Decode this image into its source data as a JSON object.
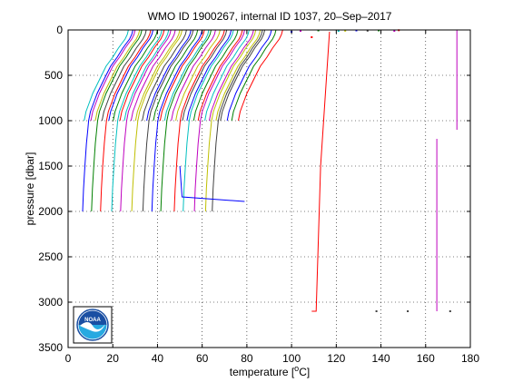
{
  "chart_data": {
    "type": "line",
    "title": "WMO ID 1900267, internal ID 1037, 20–Sep–2017",
    "xlabel_main": "temperature [",
    "xlabel_sup": "o",
    "xlabel_tail": "C]",
    "ylabel": "pressure [dbar]",
    "xlim": [
      0,
      180
    ],
    "ylim": [
      3500,
      0
    ],
    "y_reversed": true,
    "grid": true,
    "grid_style": "dotted",
    "legend": "none",
    "x_ticks": [
      "0",
      "20",
      "40",
      "60",
      "80",
      "100",
      "120",
      "140",
      "160",
      "180"
    ],
    "y_ticks": [
      "0",
      "500",
      "1000",
      "1500",
      "2000",
      "2500",
      "3000",
      "3500"
    ],
    "series_note": "Profiles are plotted with a cumulative horizontal offset; many overlapping colored lines.",
    "profile_colors": [
      "#0000ff",
      "#008000",
      "#ff0000",
      "#00bfbf",
      "#bf00bf",
      "#bfbf00",
      "#404040"
    ],
    "deep_profile_offsets": [
      5,
      9,
      13,
      18,
      22,
      27,
      32,
      36,
      40,
      46,
      50,
      55,
      60,
      63
    ],
    "shallow_profile_offsets": [
      3,
      6,
      8,
      11,
      14,
      16,
      19,
      21,
      24,
      26,
      29,
      31,
      34,
      37,
      39,
      42,
      44,
      47,
      49,
      52,
      54,
      57,
      59,
      62,
      64,
      67,
      69,
      72
    ],
    "outlier_segments": [
      {
        "color": "#0000ff",
        "points": [
          [
            50,
            1500
          ],
          [
            51,
            1840
          ],
          [
            79,
            1890
          ]
        ]
      },
      {
        "color": "#ff0000",
        "points": [
          [
            117,
            20
          ],
          [
            113,
            1500
          ],
          [
            111,
            3100
          ],
          [
            109,
            3100
          ]
        ]
      },
      {
        "color": "#bf00bf",
        "points": [
          [
            174,
            0
          ],
          [
            174,
            1100
          ]
        ]
      },
      {
        "color": "#bf00bf",
        "points": [
          [
            165,
            1200
          ],
          [
            165,
            3100
          ]
        ]
      }
    ],
    "surface_flecks": [
      {
        "x": 100,
        "y": 20,
        "color": "#0000ff"
      },
      {
        "x": 104,
        "y": 10,
        "color": "#bf00bf"
      },
      {
        "x": 109,
        "y": 80,
        "color": "#ff0000"
      },
      {
        "x": 112,
        "y": 5,
        "color": "#008000"
      },
      {
        "x": 121,
        "y": 10,
        "color": "#00bfbf"
      },
      {
        "x": 124,
        "y": 8,
        "color": "#bfbf00"
      },
      {
        "x": 129,
        "y": 5,
        "color": "#0000ff"
      },
      {
        "x": 134,
        "y": 8,
        "color": "#404040"
      },
      {
        "x": 139,
        "y": 5,
        "color": "#008000"
      },
      {
        "x": 146,
        "y": 10,
        "color": "#bf00bf"
      },
      {
        "x": 148,
        "y": 3,
        "color": "#ff0000"
      },
      {
        "x": 138,
        "y": 3100,
        "color": "#404040"
      },
      {
        "x": 152,
        "y": 3100,
        "color": "#404040"
      },
      {
        "x": 171,
        "y": 3100,
        "color": "#404040"
      }
    ]
  },
  "logo": {
    "name": "NOAA",
    "text": "NOAA",
    "colors": {
      "sky": "#1a4fa3",
      "sea": "#27a9e1",
      "bird": "#ffffff"
    }
  }
}
